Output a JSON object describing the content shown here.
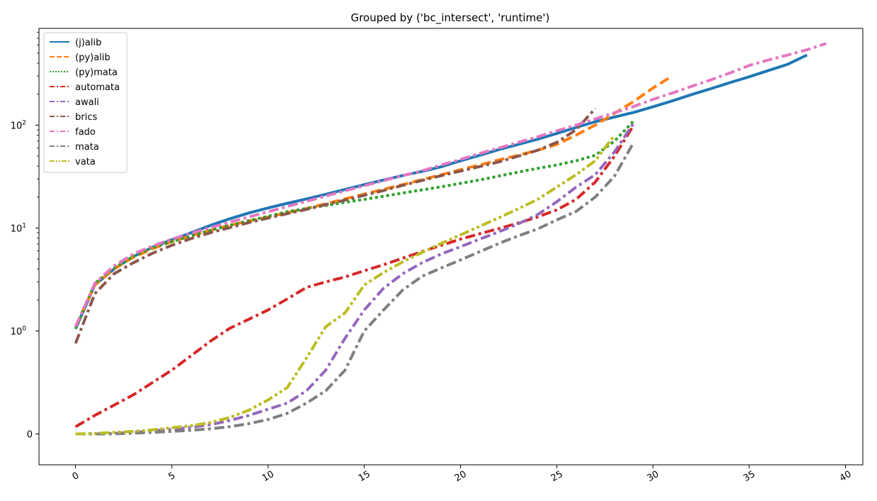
{
  "chart_data": {
    "type": "line",
    "title": "Grouped by ('bc_intersect', 'runtime')",
    "xlabel": "",
    "ylabel": "",
    "xlim": [
      -1.9,
      40.9
    ],
    "xticks": [
      0,
      5,
      10,
      15,
      20,
      25,
      30,
      35,
      40
    ],
    "y_scale": "symlog",
    "yticks": [
      {
        "value": 0,
        "label": "0"
      },
      {
        "value": 1,
        "label": "10^0"
      },
      {
        "value": 10,
        "label": "10^1"
      },
      {
        "value": 100,
        "label": "10^2"
      }
    ],
    "legend_position": "top-left",
    "series": [
      {
        "name": "(j)alib",
        "color": "#1f77b4",
        "dash": "solid",
        "x": [
          0,
          1,
          2,
          3,
          4,
          5,
          6,
          7,
          8,
          9,
          10,
          11,
          12,
          13,
          14,
          15,
          16,
          17,
          18,
          19,
          20,
          21,
          22,
          23,
          24,
          25,
          26,
          27,
          28,
          29,
          30,
          31,
          32,
          33,
          34,
          35,
          36,
          37,
          38
        ],
        "y": [
          1.05,
          2.8,
          4.0,
          5.3,
          6.5,
          7.7,
          9.0,
          10.6,
          12.3,
          14.0,
          15.7,
          17.4,
          19.2,
          21.3,
          23.7,
          26.4,
          29.3,
          32.4,
          35.5,
          39.5,
          45,
          51,
          58,
          65,
          73,
          83,
          95,
          108,
          120,
          133,
          151,
          172,
          198,
          226,
          259,
          295,
          340,
          390,
          480
        ]
      },
      {
        "name": "(py)alib",
        "color": "#ff7f0e",
        "dash": "dashed",
        "x": [
          0,
          1,
          2,
          3,
          4,
          5,
          6,
          7,
          8,
          9,
          10,
          11,
          12,
          13,
          14,
          15,
          16,
          17,
          18,
          19,
          20,
          21,
          22,
          23,
          24,
          25,
          26,
          27,
          28,
          29,
          30,
          31
        ],
        "y": [
          1.1,
          2.8,
          4.0,
          5.2,
          6.3,
          7.4,
          8.4,
          9.5,
          10.6,
          11.7,
          12.8,
          14.1,
          15.5,
          17.2,
          19.2,
          21.4,
          23.8,
          26.4,
          29.5,
          33,
          37,
          41,
          46,
          51,
          57,
          65,
          80,
          100,
          130,
          170,
          230,
          300
        ]
      },
      {
        "name": "(py)mata",
        "color": "#2ca02c",
        "dash": "dotted",
        "x": [
          0,
          1,
          2,
          3,
          4,
          5,
          6,
          7,
          8,
          9,
          10,
          11,
          12,
          13,
          14,
          15,
          16,
          17,
          18,
          19,
          20,
          21,
          22,
          23,
          24,
          25,
          26,
          27,
          28,
          29
        ],
        "y": [
          1.05,
          2.9,
          4.1,
          5.3,
          6.5,
          7.4,
          8.4,
          9.5,
          10.6,
          11.8,
          13.0,
          14.4,
          15.5,
          16.6,
          17.8,
          19.0,
          20.4,
          21.9,
          23.5,
          25.2,
          27.2,
          29.4,
          32,
          35,
          38,
          41,
          45,
          51,
          70,
          110
        ]
      },
      {
        "name": "automata",
        "color": "#d62728",
        "dash": "dashdot",
        "x": [
          0,
          1,
          2,
          3,
          4,
          5,
          6,
          7,
          8,
          9,
          10,
          11,
          12,
          13,
          14,
          15,
          16,
          17,
          18,
          19,
          20,
          21,
          22,
          23,
          24,
          25,
          26,
          27,
          28,
          29
        ],
        "y": [
          0.07,
          0.18,
          0.28,
          0.38,
          0.5,
          0.62,
          0.76,
          0.9,
          1.06,
          1.3,
          1.6,
          2.05,
          2.65,
          3.0,
          3.35,
          3.85,
          4.4,
          5.1,
          5.9,
          6.8,
          7.8,
          8.8,
          9.9,
          11.2,
          12.8,
          15,
          19,
          28,
          50,
          100
        ]
      },
      {
        "name": "awali",
        "color": "#9467bd",
        "dash": "dashdot",
        "x": [
          0,
          1,
          2,
          3,
          4,
          5,
          6,
          7,
          8,
          9,
          10,
          11,
          12,
          13,
          14,
          15,
          16,
          17,
          18,
          19,
          20,
          21,
          22,
          23,
          24,
          25,
          26,
          27,
          28,
          29
        ],
        "y": [
          0.0,
          0.0,
          0.005,
          0.015,
          0.03,
          0.045,
          0.065,
          0.09,
          0.13,
          0.18,
          0.24,
          0.3,
          0.42,
          0.62,
          0.93,
          1.6,
          2.6,
          3.6,
          4.6,
          5.6,
          6.6,
          7.8,
          9.2,
          11,
          13.5,
          18,
          25,
          33,
          55,
          105
        ]
      },
      {
        "name": "brics",
        "color": "#8c564b",
        "dash": "dashdot",
        "x": [
          0,
          1,
          2,
          3,
          4,
          5,
          6,
          7,
          8,
          9,
          10,
          11,
          12,
          13,
          14,
          15,
          16,
          17,
          18,
          19,
          20,
          21,
          22,
          23,
          24,
          25,
          26,
          27
        ],
        "y": [
          0.88,
          2.3,
          3.6,
          4.6,
          5.7,
          6.8,
          7.9,
          9.0,
          10.1,
          11.3,
          12.5,
          13.8,
          15.2,
          16.9,
          18.7,
          20.8,
          23.2,
          26,
          29,
          32.3,
          35.8,
          39.6,
          44,
          50,
          57,
          68,
          90,
          145
        ]
      },
      {
        "name": "fado",
        "color": "#e377c2",
        "dash": "dashdot",
        "x": [
          0,
          1,
          2,
          3,
          4,
          5,
          6,
          7,
          8,
          9,
          10,
          11,
          12,
          13,
          14,
          15,
          16,
          17,
          18,
          19,
          20,
          21,
          22,
          23,
          24,
          25,
          26,
          27,
          28,
          29,
          30,
          31,
          32,
          33,
          34,
          35,
          36,
          37,
          38,
          39
        ],
        "y": [
          1.1,
          2.9,
          4.3,
          5.6,
          6.7,
          7.8,
          8.9,
          10.1,
          11.4,
          12.8,
          14.4,
          16.2,
          18.2,
          20.5,
          23,
          25.8,
          28.9,
          32.3,
          36,
          41,
          46.5,
          53,
          60,
          68,
          77,
          88,
          100,
          115,
          132,
          152,
          178,
          205,
          238,
          275,
          322,
          380,
          430,
          480,
          540,
          620
        ]
      },
      {
        "name": "mata",
        "color": "#7f7f7f",
        "dash": "dashdot",
        "x": [
          0,
          1,
          2,
          3,
          4,
          5,
          6,
          7,
          8,
          9,
          10,
          11,
          12,
          13,
          14,
          15,
          16,
          17,
          18,
          19,
          20,
          21,
          22,
          23,
          24,
          25,
          26,
          27,
          28,
          29
        ],
        "y": [
          0.0,
          0.0,
          0.0,
          0.008,
          0.015,
          0.025,
          0.035,
          0.05,
          0.07,
          0.1,
          0.14,
          0.2,
          0.3,
          0.42,
          0.62,
          1.0,
          1.6,
          2.5,
          3.4,
          4.1,
          4.9,
          5.9,
          7.1,
          8.4,
          9.8,
          12,
          14.5,
          20,
          32,
          68
        ]
      },
      {
        "name": "vata",
        "color": "#bcbd22",
        "dash": "dashdotdot",
        "x": [
          0,
          1,
          2,
          3,
          4,
          5,
          6,
          7,
          8,
          9,
          10,
          11,
          12,
          13,
          14,
          15,
          16,
          17,
          18,
          19,
          20,
          21,
          22,
          23,
          24,
          25,
          26,
          27,
          28
        ],
        "y": [
          0.0,
          0.005,
          0.015,
          0.025,
          0.04,
          0.06,
          0.08,
          0.11,
          0.16,
          0.23,
          0.33,
          0.45,
          0.74,
          1.1,
          1.5,
          2.8,
          3.7,
          4.7,
          5.8,
          7.1,
          8.6,
          10.4,
          12.6,
          15.4,
          19,
          25,
          33,
          45,
          80
        ]
      }
    ]
  }
}
